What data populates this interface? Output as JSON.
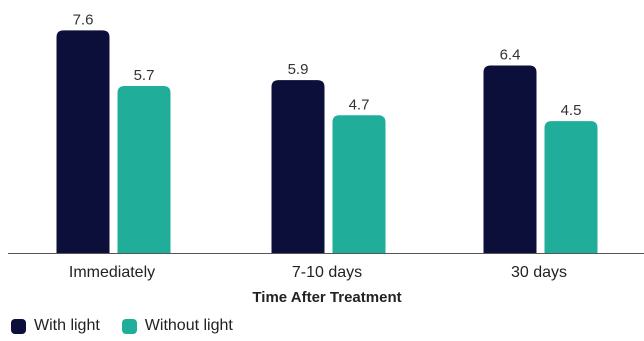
{
  "chart_data": {
    "type": "bar",
    "categories": [
      "Immediately",
      "7-10 days",
      "30 days"
    ],
    "series": [
      {
        "name": "With light",
        "values": [
          7.6,
          5.9,
          6.4
        ],
        "color": "#0b0f3a"
      },
      {
        "name": "Without light",
        "values": [
          5.7,
          4.7,
          4.5
        ],
        "color": "#20ad9a"
      }
    ],
    "xlabel": "Time After Treatment",
    "ylabel": "",
    "ylim": [
      0,
      8
    ],
    "grid": false,
    "legend_placement": "bottom-left"
  }
}
